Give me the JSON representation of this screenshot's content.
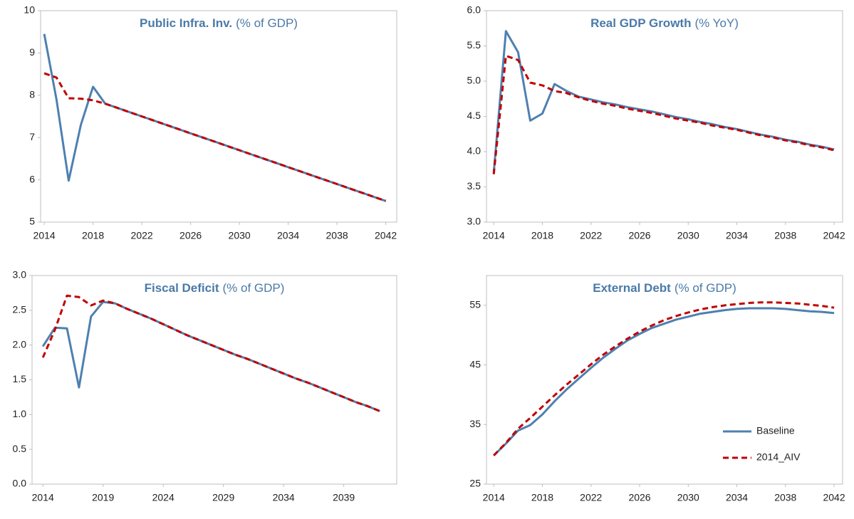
{
  "chart_data": [
    {
      "type": "line",
      "title": "Public Infra. Inv.",
      "title_unit": "(% of GDP)",
      "x": [
        2014,
        2015,
        2016,
        2017,
        2018,
        2019,
        2020,
        2021,
        2022,
        2023,
        2024,
        2025,
        2026,
        2027,
        2028,
        2029,
        2030,
        2031,
        2032,
        2033,
        2034,
        2035,
        2036,
        2037,
        2038,
        2039,
        2040,
        2041,
        2042
      ],
      "series": [
        {
          "name": "Baseline",
          "color": "#4e80b0",
          "dash": false,
          "values": [
            9.45,
            7.9,
            5.98,
            7.3,
            8.2,
            7.8,
            7.7,
            7.6,
            7.5,
            7.4,
            7.3,
            7.2,
            7.1,
            7.0,
            6.9,
            6.8,
            6.7,
            6.6,
            6.5,
            6.4,
            6.3,
            6.2,
            6.1,
            6.0,
            5.9,
            5.8,
            5.7,
            5.6,
            5.5
          ]
        },
        {
          "name": "2014_AIV",
          "color": "#c00000",
          "dash": true,
          "values": [
            8.52,
            8.42,
            7.93,
            7.92,
            7.88,
            7.8,
            7.7,
            7.6,
            7.5,
            7.4,
            7.3,
            7.2,
            7.1,
            7.0,
            6.9,
            6.8,
            6.7,
            6.6,
            6.5,
            6.4,
            6.3,
            6.2,
            6.1,
            6.0,
            5.9,
            5.8,
            5.7,
            5.6,
            5.5
          ]
        }
      ],
      "xlim": [
        2013.7,
        2042.9
      ],
      "xticks": [
        2014,
        2018,
        2022,
        2026,
        2030,
        2034,
        2038,
        2042
      ],
      "ylim": [
        5,
        10
      ],
      "yticks": [
        5,
        6,
        7,
        8,
        9,
        10
      ],
      "legend": null
    },
    {
      "type": "line",
      "title": "Real GDP Growth",
      "title_unit": "(% YoY)",
      "x": [
        2014,
        2015,
        2016,
        2017,
        2018,
        2019,
        2020,
        2021,
        2022,
        2023,
        2024,
        2025,
        2026,
        2027,
        2028,
        2029,
        2030,
        2031,
        2032,
        2033,
        2034,
        2035,
        2036,
        2037,
        2038,
        2039,
        2040,
        2041,
        2042
      ],
      "series": [
        {
          "name": "Baseline",
          "color": "#4e80b0",
          "dash": false,
          "values": [
            3.7,
            5.71,
            5.41,
            4.44,
            4.54,
            4.96,
            4.86,
            4.78,
            4.74,
            4.7,
            4.67,
            4.63,
            4.6,
            4.57,
            4.53,
            4.49,
            4.46,
            4.42,
            4.39,
            4.35,
            4.32,
            4.28,
            4.24,
            4.21,
            4.17,
            4.14,
            4.1,
            4.07,
            4.03
          ]
        },
        {
          "name": "2014_AIV",
          "color": "#c00000",
          "dash": true,
          "values": [
            3.68,
            5.36,
            5.3,
            4.98,
            4.94,
            4.86,
            4.83,
            4.77,
            4.72,
            4.68,
            4.65,
            4.61,
            4.58,
            4.55,
            4.51,
            4.47,
            4.44,
            4.41,
            4.37,
            4.34,
            4.31,
            4.27,
            4.23,
            4.2,
            4.16,
            4.13,
            4.09,
            4.06,
            4.02
          ]
        }
      ],
      "xlim": [
        2013.4,
        2042.7
      ],
      "xticks": [
        2014,
        2018,
        2022,
        2026,
        2030,
        2034,
        2038,
        2042
      ],
      "ylim": [
        3,
        6
      ],
      "yticks": [
        {
          "value": 3,
          "label": "3.0"
        },
        3.5,
        {
          "value": 4,
          "label": "4.0"
        },
        4.5,
        {
          "value": 5,
          "label": "5.0"
        },
        5.5,
        {
          "value": 6,
          "label": "6.0"
        }
      ],
      "legend": null
    },
    {
      "type": "line",
      "title": "Fiscal Deficit",
      "title_unit": "(% of GDP)",
      "x": [
        2014,
        2015,
        2016,
        2017,
        2018,
        2019,
        2020,
        2021,
        2022,
        2023,
        2024,
        2025,
        2026,
        2027,
        2028,
        2029,
        2030,
        2031,
        2032,
        2033,
        2034,
        2035,
        2036,
        2037,
        2038,
        2039,
        2040,
        2041,
        2042
      ],
      "series": [
        {
          "name": "Baseline",
          "color": "#4e80b0",
          "dash": false,
          "values": [
            1.98,
            2.25,
            2.24,
            1.39,
            2.41,
            2.62,
            2.6,
            2.52,
            2.45,
            2.38,
            2.3,
            2.22,
            2.14,
            2.07,
            2.0,
            1.93,
            1.86,
            1.8,
            1.73,
            1.66,
            1.59,
            1.52,
            1.46,
            1.39,
            1.32,
            1.25,
            1.18,
            1.12,
            1.05
          ]
        },
        {
          "name": "2014_AIV",
          "color": "#c00000",
          "dash": true,
          "values": [
            1.82,
            2.22,
            2.71,
            2.69,
            2.57,
            2.64,
            2.6,
            2.52,
            2.45,
            2.38,
            2.3,
            2.22,
            2.14,
            2.07,
            2.0,
            1.93,
            1.86,
            1.8,
            1.73,
            1.66,
            1.59,
            1.52,
            1.46,
            1.39,
            1.32,
            1.25,
            1.18,
            1.12,
            1.05
          ]
        }
      ],
      "xlim": [
        2013.1,
        2043.4
      ],
      "xticks": [
        2014,
        2019,
        2024,
        2029,
        2034,
        2039
      ],
      "ylim": [
        0,
        3
      ],
      "yticks": [
        {
          "value": 0,
          "label": "0.0"
        },
        0.5,
        {
          "value": 1,
          "label": "1.0"
        },
        1.5,
        {
          "value": 2,
          "label": "2.0"
        },
        2.5,
        {
          "value": 3,
          "label": "3.0"
        }
      ],
      "legend": null
    },
    {
      "type": "line",
      "title": "External Debt",
      "title_unit": "(% of GDP)",
      "x": [
        2014,
        2015,
        2016,
        2017,
        2018,
        2019,
        2020,
        2021,
        2022,
        2023,
        2024,
        2025,
        2026,
        2027,
        2028,
        2029,
        2030,
        2031,
        2032,
        2033,
        2034,
        2035,
        2036,
        2037,
        2038,
        2039,
        2040,
        2041,
        2042
      ],
      "series": [
        {
          "name": "Baseline",
          "color": "#4e80b0",
          "dash": false,
          "values": [
            29.8,
            31.8,
            34,
            34.9,
            36.7,
            38.9,
            40.9,
            42.7,
            44.5,
            46.2,
            47.7,
            49.1,
            50.2,
            51.2,
            51.9,
            52.6,
            53.1,
            53.6,
            53.9,
            54.2,
            54.4,
            54.5,
            54.5,
            54.5,
            54.4,
            54.2,
            54,
            53.9,
            53.7
          ]
        },
        {
          "name": "2014_AIV",
          "color": "#c00000",
          "dash": true,
          "values": [
            29.8,
            31.9,
            34.3,
            36.1,
            38,
            39.9,
            41.7,
            43.4,
            45.1,
            46.7,
            48.1,
            49.4,
            50.6,
            51.6,
            52.5,
            53.2,
            53.8,
            54.3,
            54.7,
            55,
            55.2,
            55.4,
            55.5,
            55.5,
            55.4,
            55.3,
            55.1,
            54.9,
            54.6
          ]
        }
      ],
      "xlim": [
        2013.4,
        2042.7
      ],
      "xticks": [
        2014,
        2018,
        2022,
        2026,
        2030,
        2034,
        2038,
        2042
      ],
      "ylim": [
        25,
        60
      ],
      "yticks": [
        25,
        35,
        45,
        55
      ],
      "legend": "lower right"
    }
  ]
}
